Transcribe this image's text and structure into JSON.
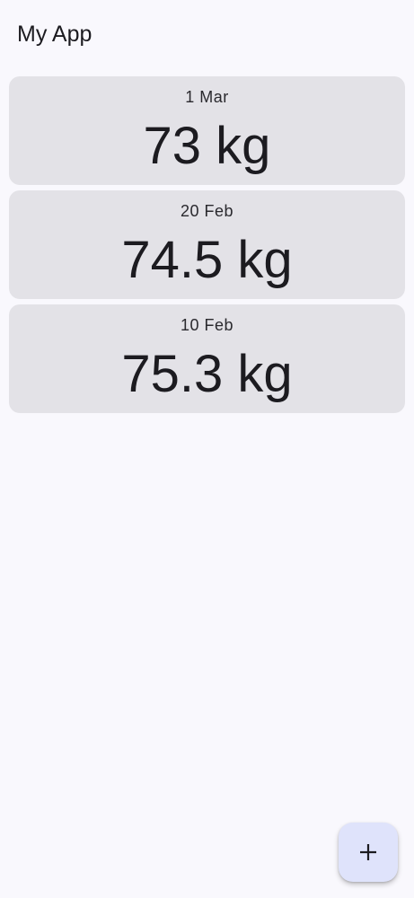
{
  "app_bar": {
    "title": "My App"
  },
  "entries": [
    {
      "date": "1 Mar",
      "weight": "73 kg"
    },
    {
      "date": "20 Feb",
      "weight": "74.5 kg"
    },
    {
      "date": "10 Feb",
      "weight": "75.3 kg"
    }
  ],
  "fab": {
    "icon": "plus-icon"
  },
  "colors": {
    "background": "#f9f8fd",
    "card": "#e3e2e7",
    "fab": "#dfe3fb",
    "text": "#1c1b20"
  }
}
